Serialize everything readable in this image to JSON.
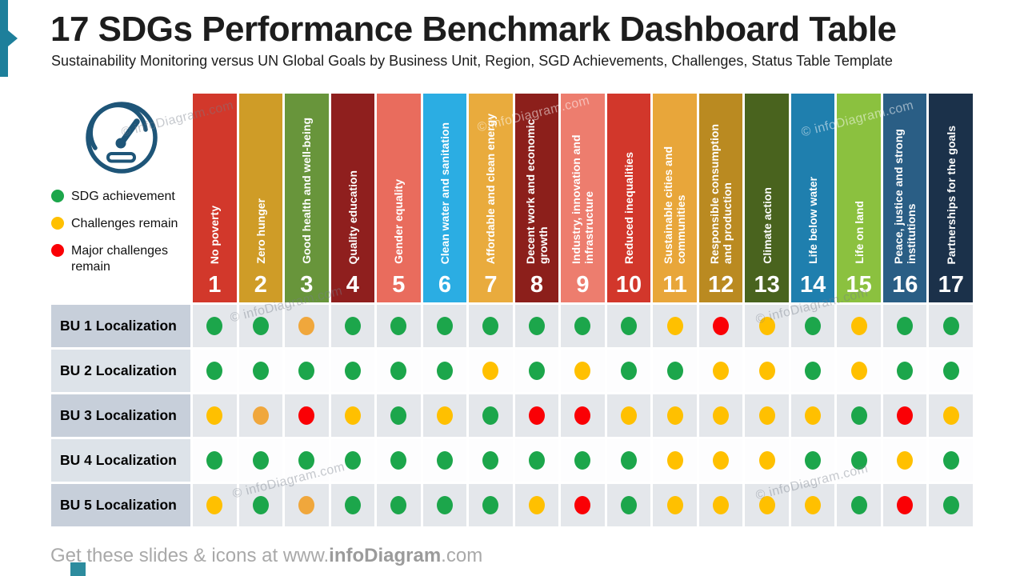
{
  "slide": {
    "title": "17 SDGs Performance Benchmark Dashboard Table",
    "subtitle": "Sustainability Monitoring versus UN Global Goals by Business Unit, Region, SGD Achievements, Challenges, Status Table Template",
    "watermark": "© infoDiagram.com",
    "accent_color": "#1D7F9B",
    "footer": {
      "prefix": "Get these slides & icons at www.",
      "brand": "infoDiagram",
      "suffix": ".com"
    }
  },
  "legend": {
    "icon": "gauge-icon",
    "icon_color": "#1E5578",
    "items": [
      {
        "key": "green",
        "color": "#1CA64B",
        "label": "SDG achievement"
      },
      {
        "key": "yellow",
        "color": "#FFC000",
        "label": "Challenges remain"
      },
      {
        "key": "red",
        "color": "#FA0005",
        "label": "Major challenges remain"
      }
    ]
  },
  "table": {
    "status_colors": {
      "green": "#1CA64B",
      "yellow": "#FFC000",
      "orange": "#F0A73C",
      "red": "#FA0005"
    },
    "columns": [
      {
        "num": "1",
        "label": "No poverty",
        "color": "#D2382B"
      },
      {
        "num": "2",
        "label": "Zero hunger",
        "color": "#CF9C27"
      },
      {
        "num": "3",
        "label": "Good health and well-being",
        "color": "#68953B"
      },
      {
        "num": "4",
        "label": "Quality education",
        "color": "#8F1F1E"
      },
      {
        "num": "5",
        "label": "Gender equality",
        "color": "#E96C5D"
      },
      {
        "num": "6",
        "label": "Clean water and sanitation",
        "color": "#2BADE3"
      },
      {
        "num": "7",
        "label": "Affordable and clean energy",
        "color": "#E9AB3D"
      },
      {
        "num": "8",
        "label": "Decent work and economic growth",
        "color": "#8C1F1B"
      },
      {
        "num": "9",
        "label": "Industry, innovation and infrastructure",
        "color": "#ED7D6E"
      },
      {
        "num": "10",
        "label": "Reduced inequalities",
        "color": "#D2372B"
      },
      {
        "num": "11",
        "label": "Sustainable cities and communities",
        "color": "#E8A63A"
      },
      {
        "num": "12",
        "label": "Responsible consumption and production",
        "color": "#BA8A21"
      },
      {
        "num": "13",
        "label": "Climate action",
        "color": "#49631E"
      },
      {
        "num": "14",
        "label": "Life below water",
        "color": "#1F7FAE"
      },
      {
        "num": "15",
        "label": "Life on land",
        "color": "#8BC13F"
      },
      {
        "num": "16",
        "label": "Peace, justice and strong institutions",
        "color": "#2A5E85"
      },
      {
        "num": "17",
        "label": "Partnerships for the goals",
        "color": "#1B314A"
      }
    ],
    "rows": [
      {
        "label": "BU 1 Localization",
        "dots": [
          "green",
          "green",
          "orange",
          "green",
          "green",
          "green",
          "green",
          "green",
          "green",
          "green",
          "yellow",
          "red",
          "yellow",
          "green",
          "yellow",
          "green",
          "green"
        ]
      },
      {
        "label": "BU 2 Localization",
        "dots": [
          "green",
          "green",
          "green",
          "green",
          "green",
          "green",
          "yellow",
          "green",
          "yellow",
          "green",
          "green",
          "yellow",
          "yellow",
          "green",
          "yellow",
          "green",
          "green"
        ]
      },
      {
        "label": "BU 3 Localization",
        "dots": [
          "yellow",
          "orange",
          "red",
          "yellow",
          "green",
          "yellow",
          "green",
          "red",
          "red",
          "yellow",
          "yellow",
          "yellow",
          "yellow",
          "yellow",
          "green",
          "red",
          "yellow"
        ]
      },
      {
        "label": "BU 4 Localization",
        "dots": [
          "green",
          "green",
          "green",
          "green",
          "green",
          "green",
          "green",
          "green",
          "green",
          "green",
          "yellow",
          "yellow",
          "yellow",
          "green",
          "green",
          "yellow",
          "green"
        ]
      },
      {
        "label": "BU 5 Localization",
        "dots": [
          "yellow",
          "green",
          "orange",
          "green",
          "green",
          "green",
          "green",
          "yellow",
          "red",
          "green",
          "yellow",
          "yellow",
          "yellow",
          "yellow",
          "green",
          "red",
          "green"
        ]
      }
    ]
  }
}
